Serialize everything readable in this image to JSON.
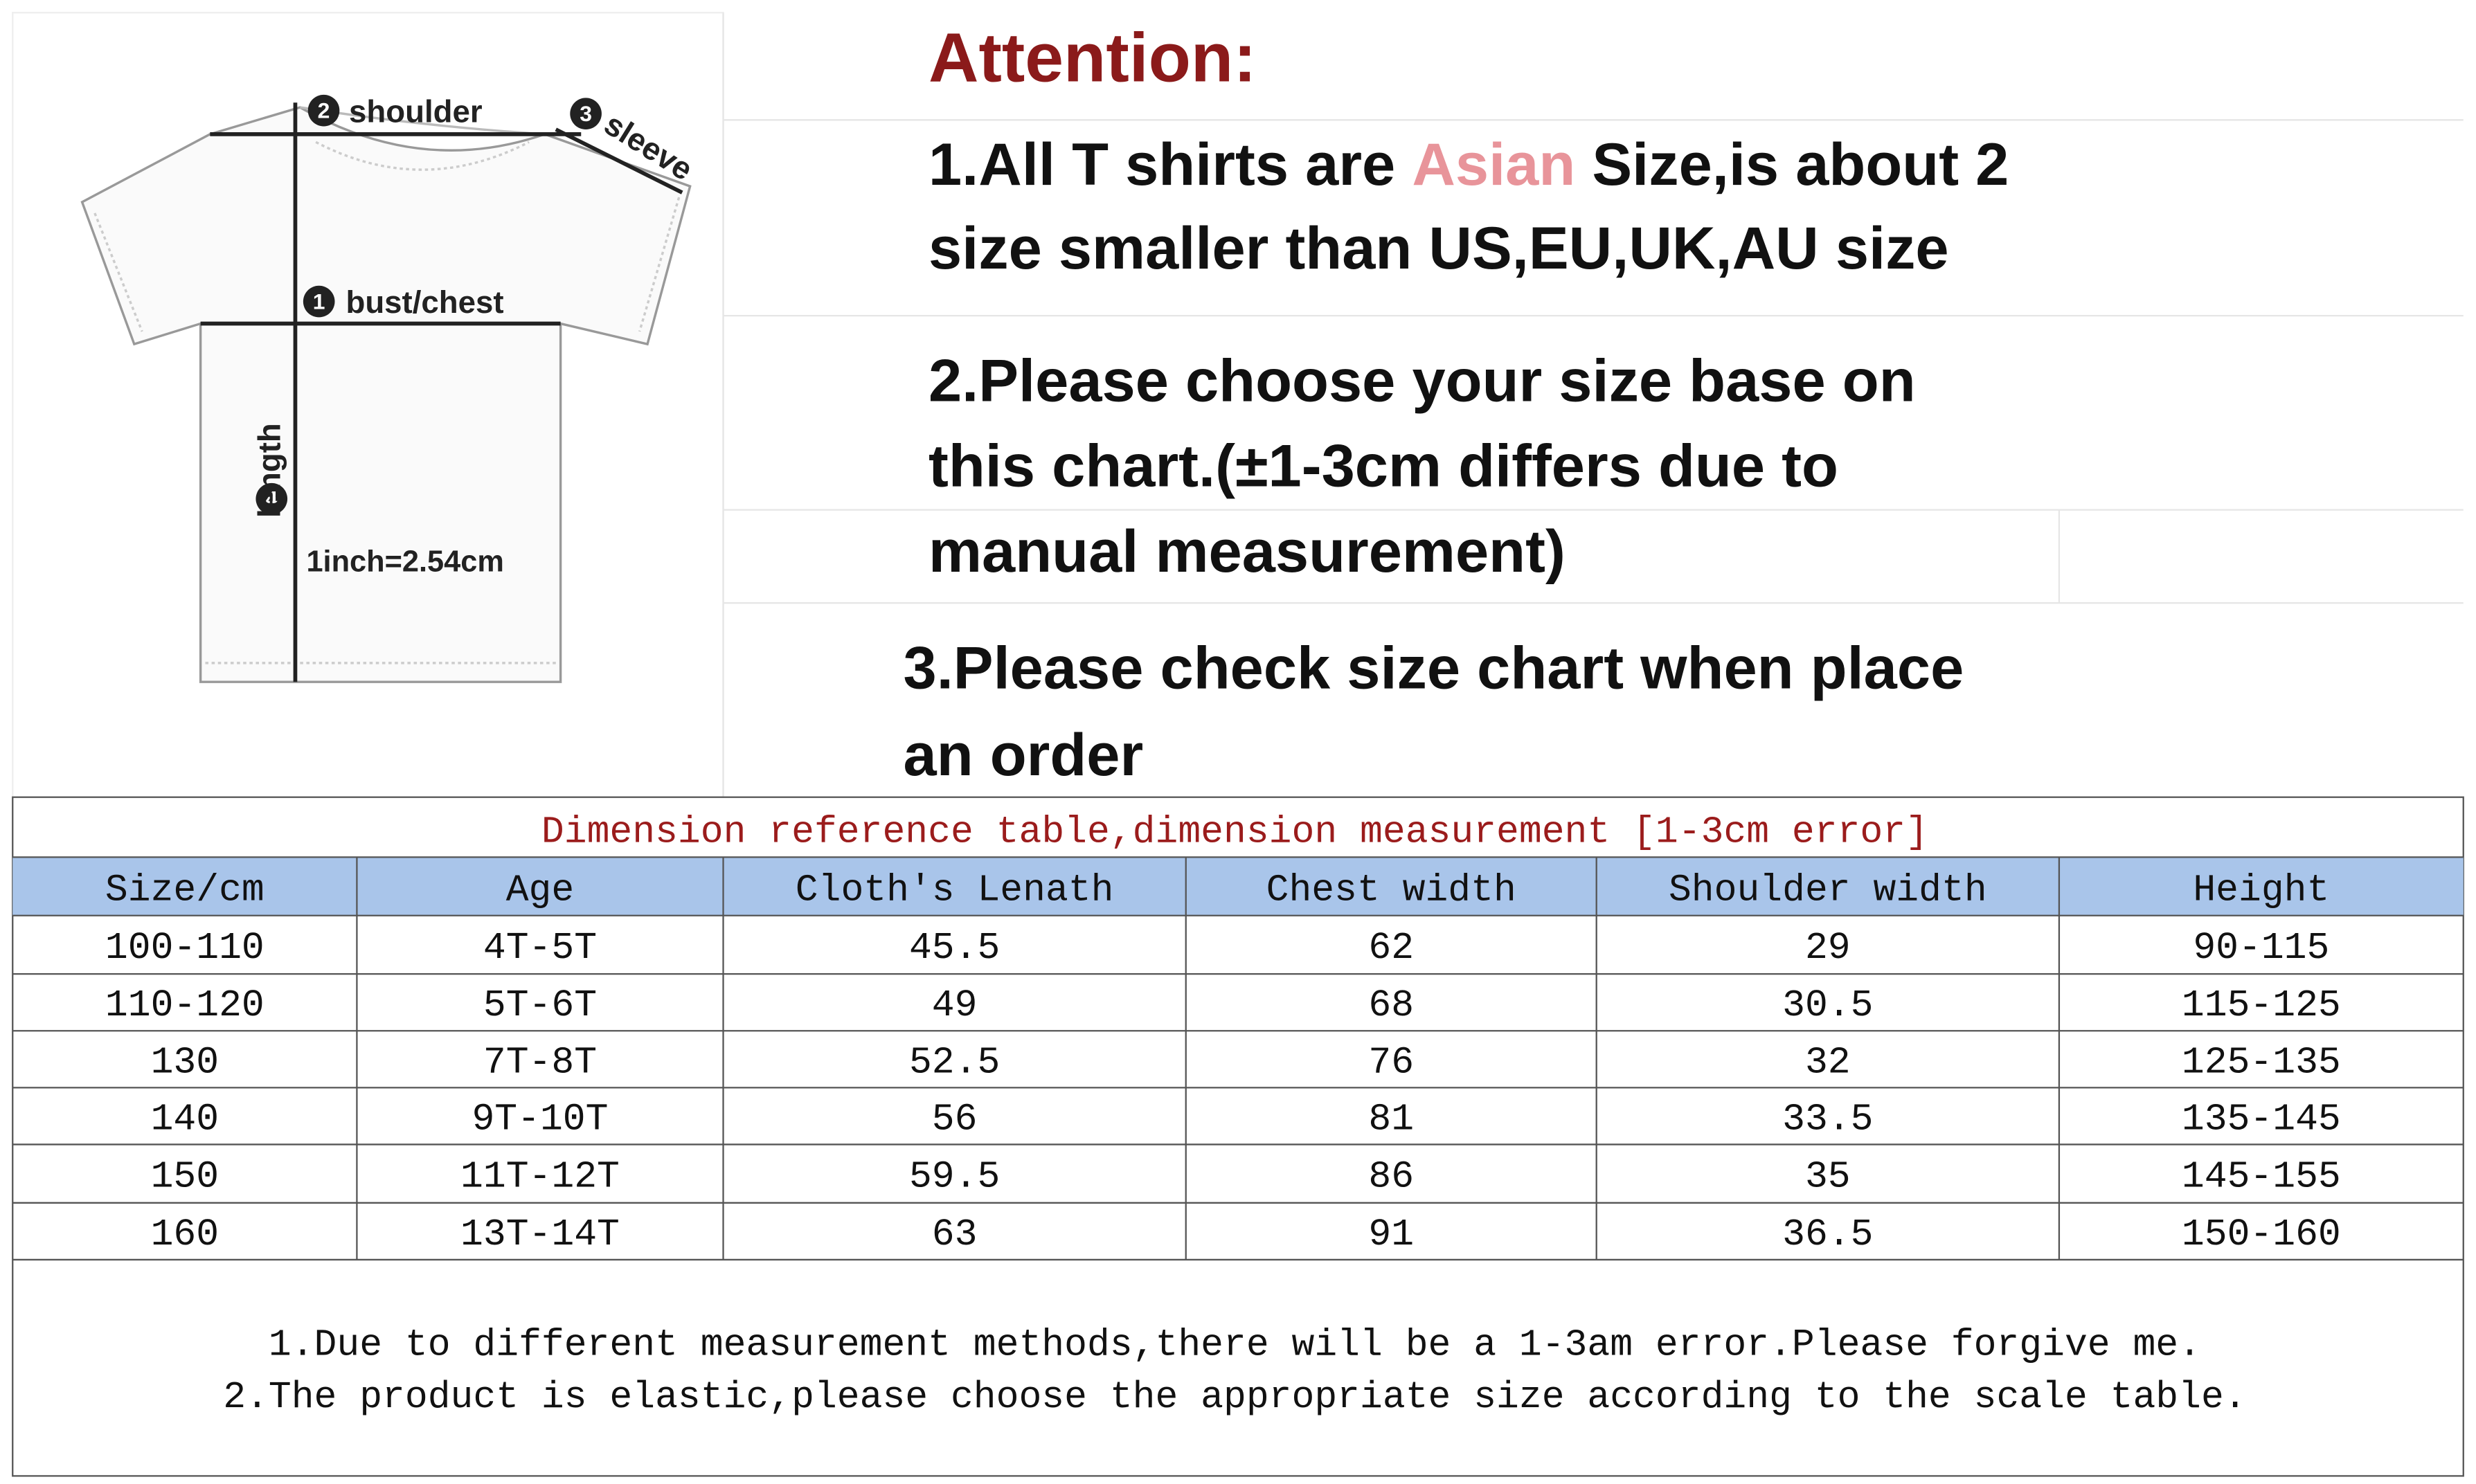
{
  "diagram": {
    "labels": [
      {
        "number": "2",
        "text": "shoulder"
      },
      {
        "number": "3",
        "text": "sleeve"
      },
      {
        "number": "1",
        "text": "bust/chest"
      },
      {
        "number": "4",
        "text": "length"
      }
    ],
    "conversion": "1inch=2.54cm"
  },
  "attention": {
    "title": "Attention:",
    "notes": [
      {
        "lines": [
          [
            "1.All T shirts are ",
            "Asian",
            " Size,is about 2"
          ],
          [
            "size smaller than US,EU,UK,AU size"
          ]
        ]
      },
      {
        "lines": [
          [
            "2.Please choose your size base on"
          ],
          [
            "this chart.(±1-3cm differs due to"
          ],
          [
            "manual measurement)"
          ]
        ]
      },
      {
        "lines": [
          [
            "3.Please check size chart when place"
          ],
          [
            "an order"
          ]
        ]
      }
    ]
  },
  "table": {
    "title": "Dimension reference table,dimension measurement [1-3cm error]",
    "columns": [
      "Size/cm",
      "Age",
      "Cloth's Lenath",
      "Chest width",
      "Shoulder width",
      "Height"
    ],
    "rows": [
      [
        "100-110",
        "4T-5T",
        "45.5",
        "62",
        "29",
        "90-115"
      ],
      [
        "110-120",
        "5T-6T",
        "49",
        "68",
        "30.5",
        "115-125"
      ],
      [
        "130",
        "7T-8T",
        "52.5",
        "76",
        "32",
        "125-135"
      ],
      [
        "140",
        "9T-10T",
        "56",
        "81",
        "33.5",
        "135-145"
      ],
      [
        "150",
        "11T-12T",
        "59.5",
        "86",
        "35",
        "145-155"
      ],
      [
        "160",
        "13T-14T",
        "63",
        "91",
        "36.5",
        "150-160"
      ]
    ]
  },
  "footer_notes": [
    "1.Due to different measurement methods,there will be a 1-3am error.Please forgive me.",
    "2.The product is elastic,please choose the appropriate size according to the scale table."
  ]
}
